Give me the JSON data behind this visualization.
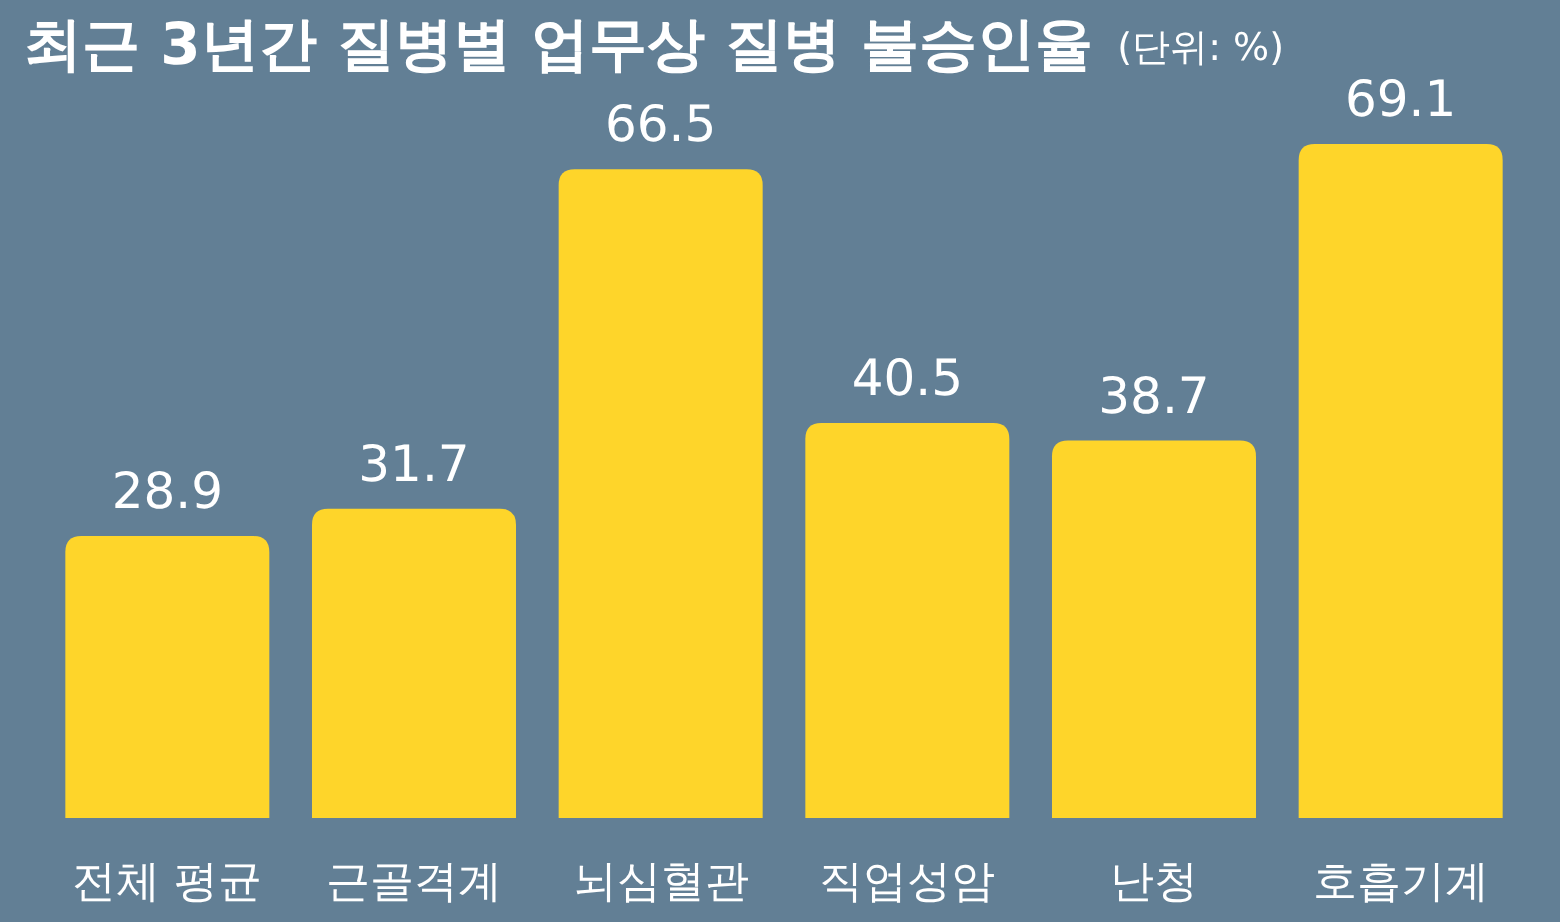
{
  "chart_data": {
    "type": "bar",
    "title": "최근 3년간 질병별 업무상 질병 불승인율",
    "subtitle": "(단위: %)",
    "categories": [
      "전체 평균",
      "근골격계",
      "뇌심혈관",
      "직업성암",
      "난청",
      "호흡기계"
    ],
    "values": [
      28.9,
      31.7,
      66.5,
      40.5,
      38.7,
      69.1
    ],
    "color": "#fed52a",
    "data_labels": true
  }
}
